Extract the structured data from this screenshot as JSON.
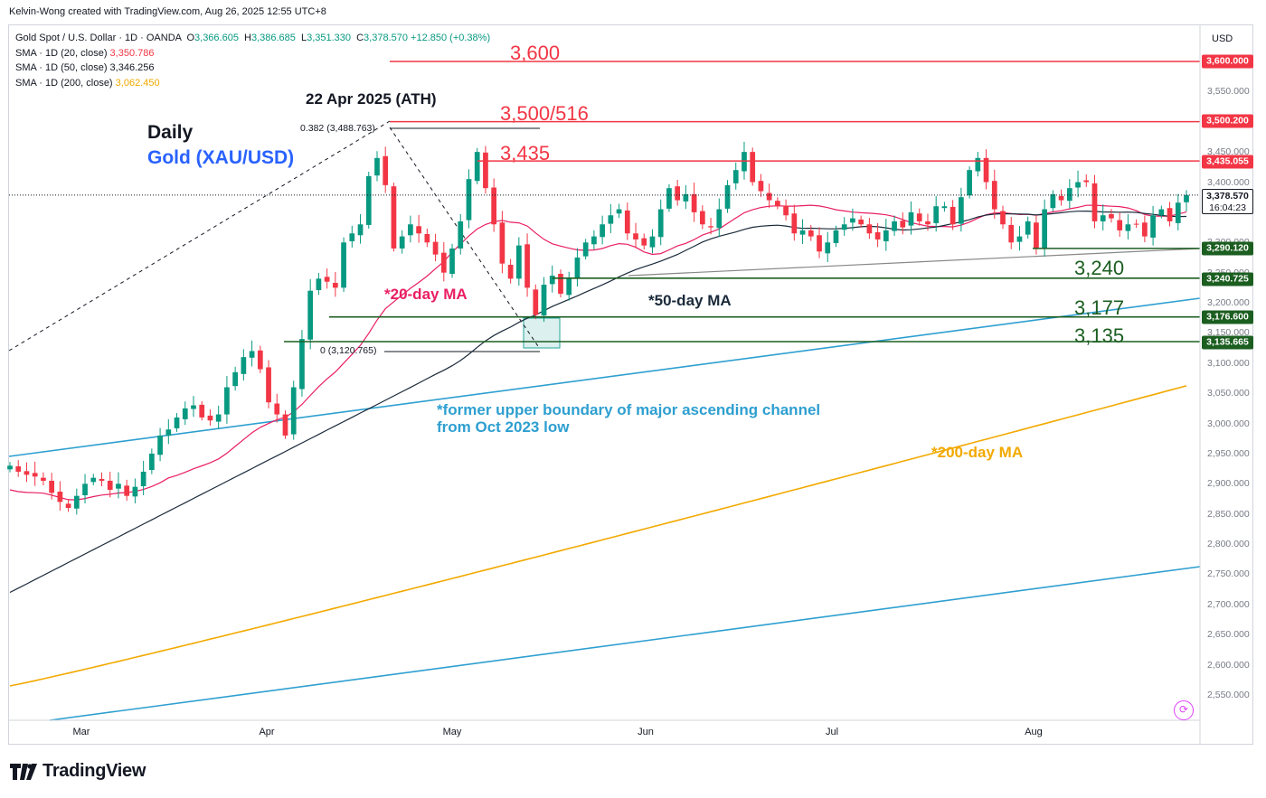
{
  "caption": "Kelvin-Wong created with TradingView.com, Aug 26, 2025 12:55 UTC+8",
  "legend": {
    "symbol": "Gold Spot / U.S. Dollar · 1D · OANDA",
    "o_label": "O",
    "o_value": "3,366.605",
    "h_label": "H",
    "h_value": "3,386.685",
    "l_label": "L",
    "l_value": "3,351.330",
    "c_label": "C",
    "c_value": "3,378.570",
    "change": "+12.850 (+0.38%)",
    "ma20_label": "SMA · 1D (20, close)",
    "ma20_value": "3,350.786",
    "ma20_color": "#f23645",
    "ma50_label": "SMA · 1D (50, close)",
    "ma50_value": "3,346.256",
    "ma50_color": "#131722",
    "ma200_label": "SMA · 1D (200, close)",
    "ma200_value": "3,062.450",
    "ma200_color": "#f2a900"
  },
  "currency": "USD",
  "annotations": {
    "ath": "22 Apr 2025 (ATH)",
    "daily": "Daily",
    "instrument": "Gold (XAU/USD)",
    "ma20": "*20-day MA",
    "ma50": "*50-day MA",
    "ma200": "*200-day MA",
    "channel_line1": "*former upper boundary of major ascending channel",
    "channel_line2": "from Oct 2023 low",
    "fib_top": "0.382 (3,488.763)",
    "fib_bottom": "0 (3,120.765)"
  },
  "levels": {
    "l3600": "3,600",
    "l3500": "3,500/516",
    "l3435": "3,435",
    "l3240": "3,240",
    "l3177": "3,177",
    "l3135": "3,135"
  },
  "price_tags": {
    "t3600": "3,600.000",
    "t3500": "3,500.200",
    "t3435": "3,435.055",
    "t3290": "3,290.120",
    "t3240": "3,240.725",
    "t3176": "3,176.600",
    "t3135": "3,135.665",
    "current_price": "3,378.570",
    "countdown": "16:04:23"
  },
  "price_ticks": [
    "3,550.000",
    "3,450.000",
    "3,400.000",
    "3,300.000",
    "3,250.000",
    "3,200.000",
    "3,150.000",
    "3,100.000",
    "3,050.000",
    "3,000.000",
    "2,950.000",
    "2,900.000",
    "2,850.000",
    "2,800.000",
    "2,750.000",
    "2,700.000",
    "2,650.000",
    "2,600.000",
    "2,550.000"
  ],
  "time_labels": [
    "Mar",
    "Apr",
    "May",
    "Jun",
    "Jul",
    "Aug"
  ],
  "branding": "TradingView",
  "colors": {
    "bull": "#089981",
    "bear": "#f23645",
    "resistance": "#f23645",
    "support": "#1b5e20",
    "channel": "#2e9fd0",
    "ma200": "#f2a900",
    "ma20": "#e91e63",
    "ma50": "#1a2a3a"
  },
  "chart_data": {
    "type": "candlestick",
    "title": "Gold Spot / U.S. Dollar · 1D · OANDA",
    "ylabel": "USD",
    "ylim": [
      2500,
      3650
    ],
    "xlabels": [
      "Mar",
      "Apr",
      "May",
      "Jun",
      "Jul",
      "Aug"
    ],
    "current": {
      "open": 3366.605,
      "high": 3386.685,
      "low": 3351.33,
      "close": 3378.57
    },
    "horizontal_levels": [
      3600,
      3500,
      3435,
      3290.12,
      3240.725,
      3176.6,
      3135.665
    ],
    "moving_averages": [
      {
        "name": "SMA 20",
        "last": 3350.786
      },
      {
        "name": "SMA 50",
        "last": 3346.256
      },
      {
        "name": "SMA 200",
        "last": 3062.45
      }
    ],
    "fibonacci": [
      {
        "ratio": 0.382,
        "price": 3488.763
      },
      {
        "ratio": 0,
        "price": 3120.765
      }
    ],
    "closes": [
      2930,
      2920,
      2915,
      2912,
      2905,
      2885,
      2870,
      2860,
      2880,
      2900,
      2910,
      2905,
      2890,
      2900,
      2880,
      2895,
      2920,
      2950,
      2980,
      2990,
      3010,
      3025,
      3030,
      3010,
      3005,
      3015,
      3060,
      3085,
      3110,
      3120,
      3090,
      3035,
      3015,
      2980,
      3060,
      3140,
      3220,
      3240,
      3235,
      3225,
      3300,
      3315,
      3330,
      3410,
      3440,
      3395,
      3290,
      3310,
      3330,
      3315,
      3300,
      3280,
      3250,
      3290,
      3335,
      3405,
      3450,
      3390,
      3330,
      3265,
      3240,
      3295,
      3225,
      3180,
      3230,
      3245,
      3215,
      3240,
      3275,
      3300,
      3310,
      3330,
      3345,
      3355,
      3315,
      3305,
      3295,
      3310,
      3355,
      3390,
      3370,
      3380,
      3350,
      3330,
      3325,
      3355,
      3395,
      3420,
      3450,
      3400,
      3385,
      3370,
      3360,
      3345,
      3315,
      3320,
      3310,
      3285,
      3300,
      3320,
      3330,
      3340,
      3330,
      3315,
      3305,
      3320,
      3335,
      3325,
      3350,
      3335,
      3330,
      3360,
      3360,
      3330,
      3375,
      3420,
      3440,
      3400,
      3355,
      3330,
      3300,
      3310,
      3335,
      3290,
      3355,
      3380,
      3370,
      3390,
      3400,
      3400,
      3335,
      3345,
      3340,
      3320,
      3330,
      3330,
      3310,
      3345,
      3355,
      3335,
      3366,
      3378.57
    ]
  }
}
